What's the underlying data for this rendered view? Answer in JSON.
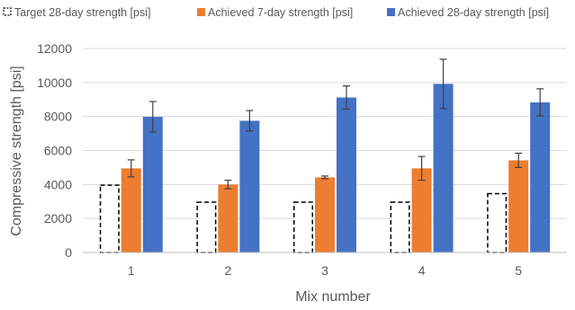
{
  "chart_data": {
    "type": "bar",
    "xlabel": "Mix number",
    "ylabel": "Compressive strength [psi]",
    "categories": [
      "1",
      "2",
      "3",
      "4",
      "5"
    ],
    "ylim": [
      0,
      12000
    ],
    "yticks": [
      0,
      2000,
      4000,
      6000,
      8000,
      10000,
      12000
    ],
    "ytick_labels": [
      "0",
      "2000",
      "4000",
      "6000",
      "8000",
      "10000",
      "12000"
    ],
    "grid": true,
    "legend_position": "top",
    "series": [
      {
        "name": "Target 28-day strength [psi]",
        "style": "dashed-outline",
        "color": "#000000",
        "values": [
          4000,
          3000,
          3000,
          3000,
          3500
        ],
        "error": null
      },
      {
        "name": "Achieved 7-day strength [psi]",
        "style": "filled",
        "color": "#ED7D31",
        "values": [
          4950,
          4000,
          4420,
          4950,
          5420
        ],
        "error": [
          500,
          250,
          80,
          700,
          420
        ]
      },
      {
        "name": "Achieved 28-day strength [psi]",
        "style": "filled",
        "color": "#4472C4",
        "values": [
          7980,
          7750,
          9120,
          9920,
          8830
        ],
        "error": [
          900,
          600,
          680,
          1450,
          800
        ]
      }
    ]
  }
}
